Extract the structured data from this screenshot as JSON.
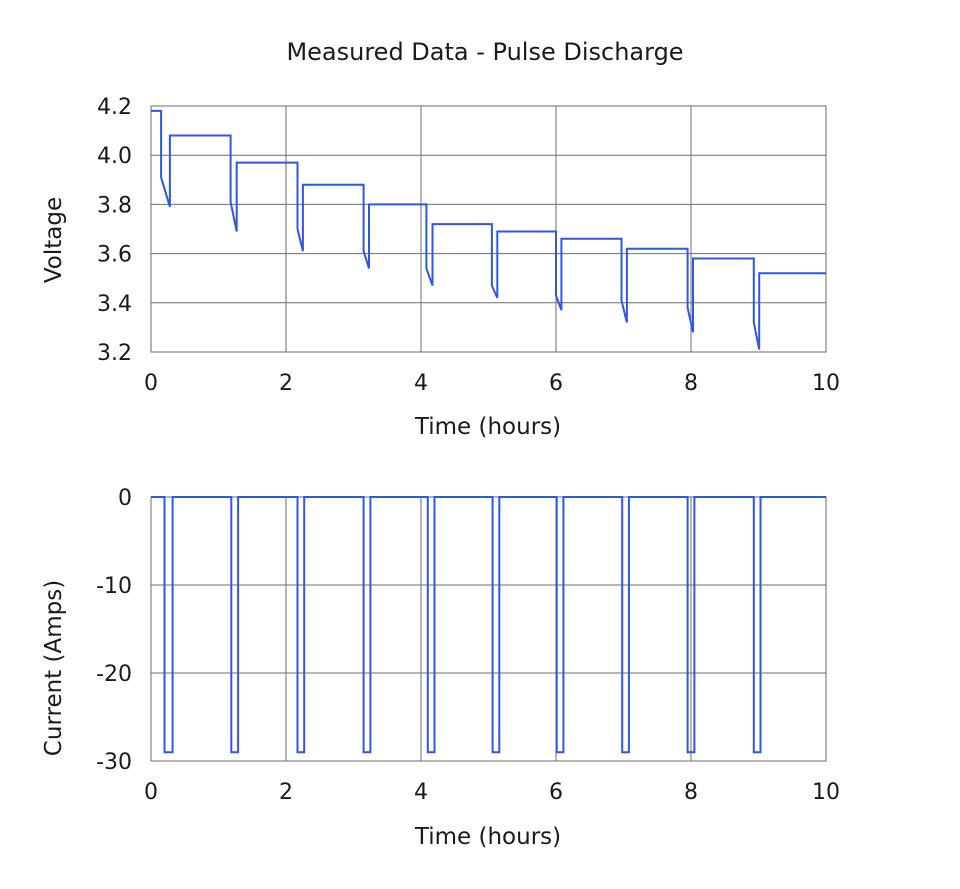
{
  "title": "Measured Data - Pulse Discharge",
  "colors": {
    "series": "#2f56e6"
  },
  "chart_data": [
    {
      "type": "line",
      "xlabel": "Time (hours)",
      "ylabel": "Voltage",
      "xlim": [
        0,
        10
      ],
      "ylim": [
        3.2,
        4.2
      ],
      "xticks": [
        "0",
        "2",
        "4",
        "6",
        "8",
        "10"
      ],
      "yticks": [
        "3.2",
        "3.4",
        "3.6",
        "3.8",
        "4.0",
        "4.2"
      ],
      "grid": true,
      "series": [
        {
          "x": [
            0,
            0.15,
            0.15,
            0.28,
            0.28,
            1.18,
            1.18,
            1.27,
            1.27,
            2.17,
            2.17,
            2.25,
            2.25,
            3.15,
            3.15,
            3.23,
            3.23,
            4.08,
            4.08,
            4.17,
            4.17,
            5.05,
            5.05,
            5.13,
            5.13,
            6.0,
            6.0,
            6.08,
            6.08,
            6.97,
            6.97,
            7.05,
            7.05,
            7.95,
            7.95,
            8.03,
            8.03,
            8.93,
            8.93,
            9.01,
            9.01,
            10.0
          ],
          "y": [
            4.18,
            4.18,
            3.91,
            3.79,
            4.08,
            4.08,
            3.81,
            3.69,
            3.97,
            3.97,
            3.7,
            3.61,
            3.88,
            3.88,
            3.61,
            3.54,
            3.8,
            3.8,
            3.54,
            3.47,
            3.72,
            3.72,
            3.47,
            3.42,
            3.69,
            3.69,
            3.43,
            3.37,
            3.66,
            3.66,
            3.41,
            3.32,
            3.62,
            3.62,
            3.38,
            3.28,
            3.58,
            3.58,
            3.32,
            3.21,
            3.52,
            3.52
          ]
        }
      ]
    },
    {
      "type": "line",
      "xlabel": "Time (hours)",
      "ylabel": "Current (Amps)",
      "xlim": [
        0,
        10
      ],
      "ylim": [
        -30,
        0
      ],
      "xticks": [
        "0",
        "2",
        "4",
        "6",
        "8",
        "10"
      ],
      "yticks": [
        "-30",
        "-20",
        "-10",
        "0"
      ],
      "grid": true,
      "series": [
        {
          "pulses": [
            [
              0.2,
              0.32
            ],
            [
              1.19,
              1.29
            ],
            [
              2.17,
              2.27
            ],
            [
              3.15,
              3.25
            ],
            [
              4.1,
              4.2
            ],
            [
              5.06,
              5.16
            ],
            [
              6.01,
              6.11
            ],
            [
              6.98,
              7.08
            ],
            [
              7.95,
              8.05
            ],
            [
              8.93,
              9.03
            ]
          ],
          "low": -29,
          "high": 0
        }
      ]
    }
  ]
}
